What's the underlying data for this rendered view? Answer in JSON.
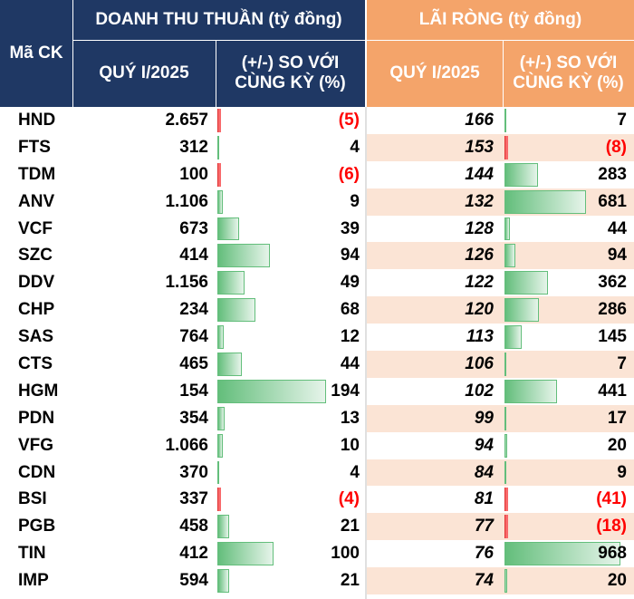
{
  "header": {
    "ticker_label": "Mã CK",
    "revenue_group": "DOANH THU THUẦN (tỷ đồng)",
    "profit_group": "LÃI RÒNG (tỷ đồng)",
    "rev_quarter": "QUÝ I/2025",
    "rev_change": "(+/-) SO VỚI CÙNG KỲ (%)",
    "profit_quarter": "QUÝ I/2025",
    "profit_change": "(+/-) SO VỚI CÙNG KỲ (%)"
  },
  "colors": {
    "navy": "#1f3864",
    "orange": "#f4a46a",
    "band": "#fbe4d5",
    "bar_pos": "#63be7b",
    "bar_neg": "#f8696b"
  },
  "rows": [
    {
      "ticker": "HND",
      "revenue": "2.657",
      "rev_chg": "(5)",
      "rev_chg_num": -5,
      "profit": "166",
      "profit_chg": "7",
      "profit_chg_num": 7
    },
    {
      "ticker": "FTS",
      "revenue": "312",
      "rev_chg": "4",
      "rev_chg_num": 4,
      "profit": "153",
      "profit_chg": "(8)",
      "profit_chg_num": -8
    },
    {
      "ticker": "TDM",
      "revenue": "100",
      "rev_chg": "(6)",
      "rev_chg_num": -6,
      "profit": "144",
      "profit_chg": "283",
      "profit_chg_num": 283
    },
    {
      "ticker": "ANV",
      "revenue": "1.106",
      "rev_chg": "9",
      "rev_chg_num": 9,
      "profit": "132",
      "profit_chg": "681",
      "profit_chg_num": 681
    },
    {
      "ticker": "VCF",
      "revenue": "673",
      "rev_chg": "39",
      "rev_chg_num": 39,
      "profit": "128",
      "profit_chg": "44",
      "profit_chg_num": 44
    },
    {
      "ticker": "SZC",
      "revenue": "414",
      "rev_chg": "94",
      "rev_chg_num": 94,
      "profit": "126",
      "profit_chg": "94",
      "profit_chg_num": 94
    },
    {
      "ticker": "DDV",
      "revenue": "1.156",
      "rev_chg": "49",
      "rev_chg_num": 49,
      "profit": "122",
      "profit_chg": "362",
      "profit_chg_num": 362
    },
    {
      "ticker": "CHP",
      "revenue": "234",
      "rev_chg": "68",
      "rev_chg_num": 68,
      "profit": "120",
      "profit_chg": "286",
      "profit_chg_num": 286
    },
    {
      "ticker": "SAS",
      "revenue": "764",
      "rev_chg": "12",
      "rev_chg_num": 12,
      "profit": "113",
      "profit_chg": "145",
      "profit_chg_num": 145
    },
    {
      "ticker": "CTS",
      "revenue": "465",
      "rev_chg": "44",
      "rev_chg_num": 44,
      "profit": "106",
      "profit_chg": "7",
      "profit_chg_num": 7
    },
    {
      "ticker": "HGM",
      "revenue": "154",
      "rev_chg": "194",
      "rev_chg_num": 194,
      "profit": "102",
      "profit_chg": "441",
      "profit_chg_num": 441
    },
    {
      "ticker": "PDN",
      "revenue": "354",
      "rev_chg": "13",
      "rev_chg_num": 13,
      "profit": "99",
      "profit_chg": "17",
      "profit_chg_num": 17
    },
    {
      "ticker": "VFG",
      "revenue": "1.066",
      "rev_chg": "10",
      "rev_chg_num": 10,
      "profit": "94",
      "profit_chg": "20",
      "profit_chg_num": 20
    },
    {
      "ticker": "CDN",
      "revenue": "370",
      "rev_chg": "4",
      "rev_chg_num": 4,
      "profit": "84",
      "profit_chg": "9",
      "profit_chg_num": 9
    },
    {
      "ticker": "BSI",
      "revenue": "337",
      "rev_chg": "(4)",
      "rev_chg_num": -4,
      "profit": "81",
      "profit_chg": "(41)",
      "profit_chg_num": -41
    },
    {
      "ticker": "PGB",
      "revenue": "458",
      "rev_chg": "21",
      "rev_chg_num": 21,
      "profit": "77",
      "profit_chg": "(18)",
      "profit_chg_num": -18
    },
    {
      "ticker": "TIN",
      "revenue": "412",
      "rev_chg": "100",
      "rev_chg_num": 100,
      "profit": "76",
      "profit_chg": "968",
      "profit_chg_num": 968
    },
    {
      "ticker": "IMP",
      "revenue": "594",
      "rev_chg": "21",
      "rev_chg_num": 21,
      "profit": "74",
      "profit_chg": "20",
      "profit_chg_num": 20
    }
  ]
}
